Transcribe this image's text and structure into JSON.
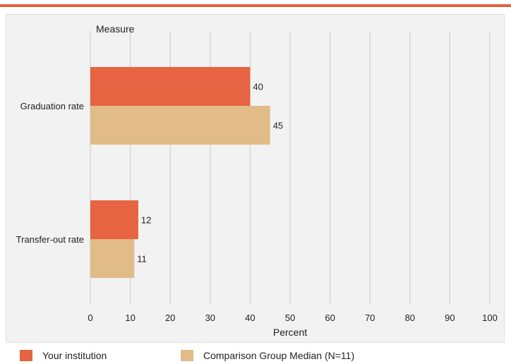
{
  "colors": {
    "accent_bar": "#e0643c",
    "your_institution": "#e66441",
    "comparison": "#e1bb88",
    "grid": "#d6d6d6",
    "panel": "#f2f2f2"
  },
  "chart_data": {
    "type": "bar",
    "orientation": "horizontal",
    "title": "",
    "category_axis_title": "Measure",
    "xlabel": "Percent",
    "xlim": [
      0,
      100
    ],
    "xticks": [
      0,
      10,
      20,
      30,
      40,
      50,
      60,
      70,
      80,
      90,
      100
    ],
    "grid": true,
    "legend_position": "bottom",
    "categories": [
      "Graduation rate",
      "Transfer-out rate"
    ],
    "series": [
      {
        "name": "Your institution",
        "values": [
          40,
          12
        ],
        "color": "#e66441"
      },
      {
        "name": "Comparison Group Median (N=11)",
        "values": [
          45,
          11
        ],
        "color": "#e1bb88"
      }
    ]
  }
}
